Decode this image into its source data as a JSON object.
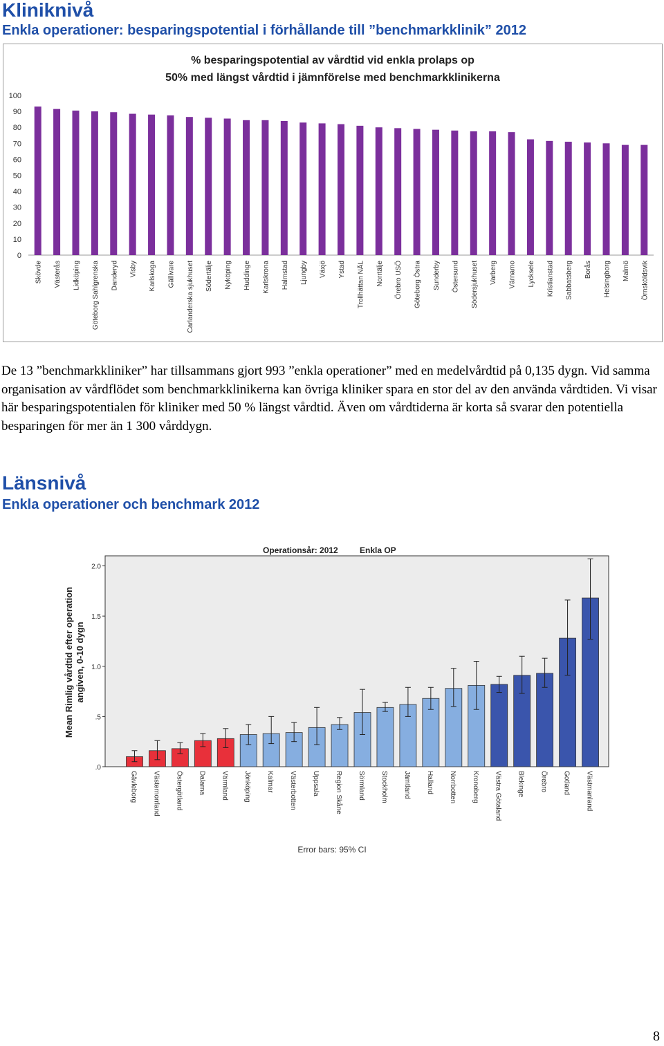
{
  "section1": {
    "heading": "Kliniknivå",
    "subheading": "Enkla operationer: besparingspotential i förhållande till ”benchmarkklinik” 2012"
  },
  "chart1_title": {
    "line1": "% besparingspotential av vårdtid vid enkla prolaps op",
    "line2": "50% med längst vårdtid i jämnförelse med benchmarkklinikerna"
  },
  "paragraph": "De 13 ”benchmarkkliniker” har tillsammans gjort 993 ”enkla operationer” med en medelvårdtid på 0,135 dygn. Vid samma organisation av vårdflödet som benchmarkklinikerna kan övriga kliniker spara en stor del av den använda vårdtiden. Vi visar här besparingspotentialen för kliniker med 50 % längst vårdtid. Även om vårdtiderna är korta så svarar den potentiella besparingen för mer än 1 300 vårddygn.",
  "section2": {
    "heading": "Länsnivå",
    "subheading": "Enkla operationer och benchmark 2012"
  },
  "chart2_title": {
    "part1": "Operationsår: 2012",
    "part2": "Enkla OP"
  },
  "chart2_ylabel_line1": "Mean Rimlig vårdtid efter operation",
  "chart2_ylabel_line2": "angiven, 0-10 dygn",
  "chart2_footnote": "Error bars: 95% CI",
  "page_number": "8",
  "colors": {
    "heading": "#1f4fa8",
    "bar_purple": "#7b2f9c",
    "bar_red": "#e8303a",
    "bar_light_blue": "#86aee0",
    "bar_dark_blue": "#3a55ac"
  },
  "chart_data": [
    {
      "type": "bar",
      "title": "% besparingspotential av vårdtid vid enkla prolaps op 50% med längst vårdtid i jämnförelse med benchmarkklinikerna",
      "ylim": [
        0,
        100
      ],
      "yticks": [
        "0",
        "10",
        "20",
        "30",
        "40",
        "50",
        "60",
        "70",
        "80",
        "90",
        "100"
      ],
      "grid": false,
      "categories": [
        "Skövde",
        "Västerås",
        "Lidköping",
        "Göteborg Sahlgrenska",
        "Danderyd",
        "Visby",
        "Karlskoga",
        "Gällivare",
        "Carlanderska sjukhuset",
        "Södertälje",
        "Nyköping",
        "Huddinge",
        "Karlskrona",
        "Halmstad",
        "Ljungby",
        "Växjö",
        "Ystad",
        "Trollhättan NÄL",
        "Norrtälje",
        "Örebro USÖ",
        "Göteborg Östra",
        "Sunderby",
        "Östersund",
        "Södersjukhuset",
        "Varberg",
        "Värnamo",
        "Lycksele",
        "Kristianstad",
        "Sabbatsberg",
        "Borås",
        "Helsingborg",
        "Malmö",
        "Örnsköldsvik"
      ],
      "values": [
        93,
        91.5,
        90.5,
        90,
        89.5,
        88.5,
        88,
        87.5,
        86.5,
        86,
        85.5,
        84.5,
        84.5,
        84,
        83,
        82.5,
        82,
        81,
        80,
        79.5,
        79,
        78.5,
        78,
        77.5,
        77.5,
        77,
        72.5,
        71.5,
        71,
        70.5,
        70,
        69,
        69
      ]
    },
    {
      "type": "bar",
      "title": "Operationsår: 2012 Enkla OP",
      "ylabel": "Mean Rimlig vårdtid efter operation angiven, 0-10 dygn",
      "ylim": [
        0,
        2.1
      ],
      "yticks": [
        ".0",
        ".5",
        "1.0",
        "1.5",
        "2.0"
      ],
      "grid": false,
      "footnote": "Error bars: 95% CI",
      "categories": [
        "Gävleborg",
        "Västernorrland",
        "Östergötland",
        "Dalarna",
        "Värmland",
        "Jönköping",
        "Kalmar",
        "Västerbotten",
        "Uppsala",
        "Region Skåne",
        "Sörmland",
        "Stockholm",
        "Jämtland",
        "Halland",
        "Norrbotten",
        "Kronoberg",
        "Västra Götaland",
        "Blekinge",
        "Örebro",
        "Gotland",
        "Västmanland"
      ],
      "values": [
        0.1,
        0.16,
        0.18,
        0.26,
        0.28,
        0.32,
        0.33,
        0.34,
        0.39,
        0.42,
        0.54,
        0.59,
        0.62,
        0.68,
        0.78,
        0.81,
        0.82,
        0.91,
        0.93,
        1.28,
        1.68
      ],
      "ci_low": [
        0.05,
        0.07,
        0.13,
        0.2,
        0.19,
        0.22,
        0.23,
        0.25,
        0.22,
        0.37,
        0.32,
        0.55,
        0.5,
        0.57,
        0.6,
        0.57,
        0.74,
        0.73,
        0.79,
        0.91,
        1.27
      ],
      "ci_high": [
        0.16,
        0.26,
        0.24,
        0.33,
        0.38,
        0.42,
        0.5,
        0.44,
        0.59,
        0.49,
        0.77,
        0.64,
        0.79,
        0.79,
        0.98,
        1.05,
        0.9,
        1.1,
        1.08,
        1.66,
        2.07
      ],
      "bar_colors": [
        "red",
        "red",
        "red",
        "red",
        "red",
        "light_blue",
        "light_blue",
        "light_blue",
        "light_blue",
        "light_blue",
        "light_blue",
        "light_blue",
        "light_blue",
        "light_blue",
        "light_blue",
        "light_blue",
        "dark_blue",
        "dark_blue",
        "dark_blue",
        "dark_blue",
        "dark_blue"
      ]
    }
  ]
}
